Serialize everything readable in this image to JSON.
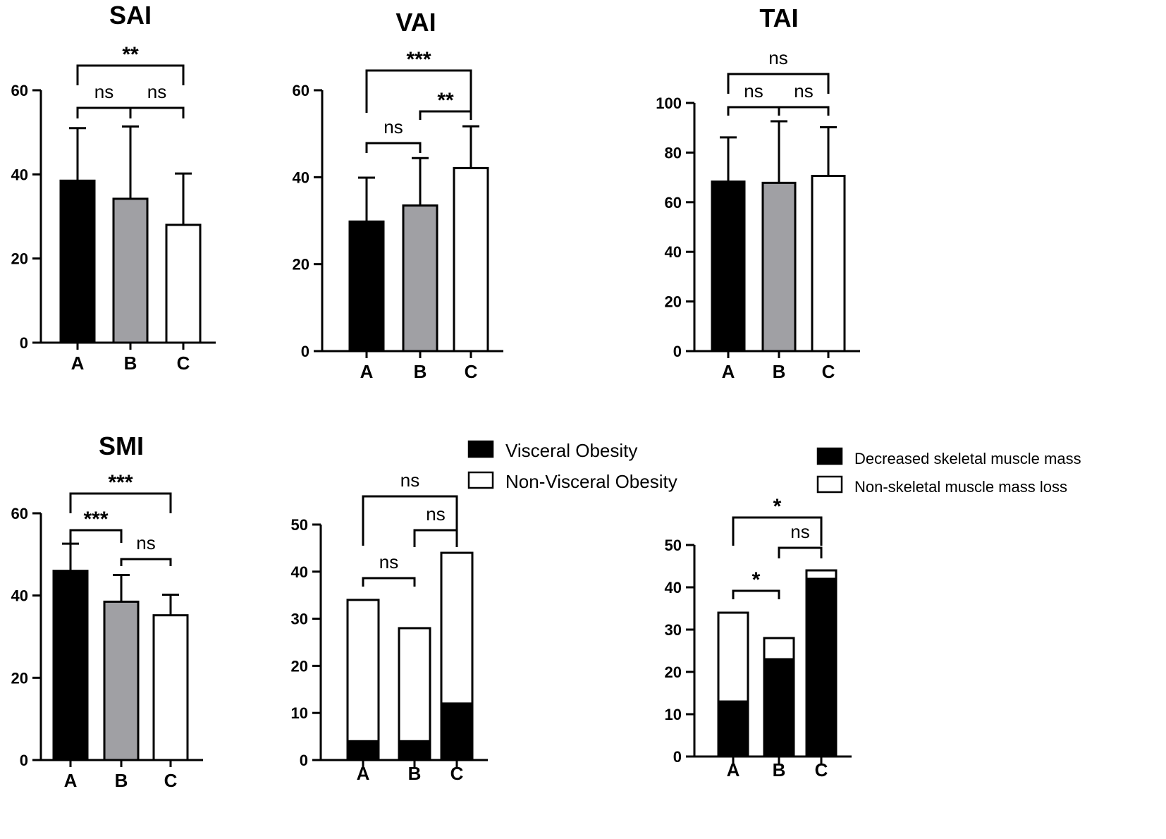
{
  "chart_data": [
    {
      "id": "sai",
      "type": "bar",
      "title": "SAI",
      "categories": [
        "A",
        "B",
        "C"
      ],
      "values": [
        38.5,
        34.2,
        28.0
      ],
      "errors": [
        12.5,
        17.2,
        12.2
      ],
      "colors": [
        "#000000",
        "#a0a0a4",
        "#ffffff"
      ],
      "ylim": [
        0,
        60
      ],
      "yticks": [
        "0",
        "20",
        "40",
        "60"
      ],
      "brackets": [
        {
          "from": 0,
          "to": 1,
          "label": "ns"
        },
        {
          "from": 1,
          "to": 2,
          "label": "ns"
        },
        {
          "from": 0,
          "to": 2,
          "label": "**"
        }
      ]
    },
    {
      "id": "vai",
      "type": "bar",
      "title": "VAI",
      "categories": [
        "A",
        "B",
        "C"
      ],
      "values": [
        29.8,
        33.5,
        42.1
      ],
      "errors": [
        10.1,
        10.9,
        9.6
      ],
      "colors": [
        "#000000",
        "#a0a0a4",
        "#ffffff"
      ],
      "ylim": [
        0,
        60
      ],
      "yticks": [
        "0",
        "20",
        "40",
        "60"
      ],
      "brackets": [
        {
          "from": 0,
          "to": 1,
          "label": "ns"
        },
        {
          "from": 1,
          "to": 2,
          "label": "**"
        },
        {
          "from": 0,
          "to": 2,
          "label": "***"
        }
      ]
    },
    {
      "id": "tai",
      "type": "bar",
      "title": "TAI",
      "categories": [
        "A",
        "B",
        "C"
      ],
      "values": [
        68.3,
        67.8,
        70.6
      ],
      "errors": [
        17.8,
        24.8,
        19.6
      ],
      "colors": [
        "#000000",
        "#a0a0a4",
        "#ffffff"
      ],
      "ylim": [
        0,
        100
      ],
      "yticks": [
        "0",
        "20",
        "40",
        "60",
        "80",
        "100"
      ],
      "brackets": [
        {
          "from": 0,
          "to": 1,
          "label": "ns"
        },
        {
          "from": 1,
          "to": 2,
          "label": "ns"
        },
        {
          "from": 0,
          "to": 2,
          "label": "ns"
        }
      ]
    },
    {
      "id": "smi",
      "type": "bar",
      "title": "SMI",
      "categories": [
        "A",
        "B",
        "C"
      ],
      "values": [
        46.0,
        38.5,
        35.2
      ],
      "errors": [
        6.6,
        6.5,
        5.0
      ],
      "colors": [
        "#000000",
        "#a0a0a4",
        "#ffffff"
      ],
      "ylim": [
        0,
        60
      ],
      "yticks": [
        "0",
        "20",
        "40",
        "60"
      ],
      "brackets": [
        {
          "from": 0,
          "to": 1,
          "label": "***"
        },
        {
          "from": 1,
          "to": 2,
          "label": "ns"
        },
        {
          "from": 0,
          "to": 2,
          "label": "***"
        }
      ]
    },
    {
      "id": "visceral",
      "type": "bar",
      "stacked": true,
      "title": "",
      "categories": [
        "A",
        "B",
        "C"
      ],
      "series": [
        {
          "name": "Visceral Obesity",
          "values": [
            4,
            4,
            12
          ],
          "color": "#000000"
        },
        {
          "name": "Non-Visceral Obesity",
          "values": [
            30,
            24,
            32
          ],
          "color": "#ffffff"
        }
      ],
      "ylim": [
        0,
        50
      ],
      "yticks": [
        "0",
        "10",
        "20",
        "30",
        "40",
        "50"
      ],
      "brackets": [
        {
          "from": 0,
          "to": 1,
          "label": "ns"
        },
        {
          "from": 1,
          "to": 2,
          "label": "ns"
        },
        {
          "from": 0,
          "to": 2,
          "label": "ns"
        }
      ]
    },
    {
      "id": "muscle",
      "type": "bar",
      "stacked": true,
      "title": "",
      "categories": [
        "A",
        "B",
        "C"
      ],
      "series": [
        {
          "name": "Decreased skeletal muscle mass",
          "values": [
            13,
            23,
            42
          ],
          "color": "#000000"
        },
        {
          "name": "Non-skeletal muscle mass loss",
          "values": [
            21,
            5,
            2
          ],
          "color": "#ffffff"
        }
      ],
      "ylim": [
        0,
        50
      ],
      "yticks": [
        "0",
        "10",
        "20",
        "30",
        "40",
        "50"
      ],
      "brackets": [
        {
          "from": 0,
          "to": 1,
          "label": "*"
        },
        {
          "from": 1,
          "to": 2,
          "label": "ns"
        },
        {
          "from": 0,
          "to": 2,
          "label": "*"
        }
      ]
    }
  ]
}
